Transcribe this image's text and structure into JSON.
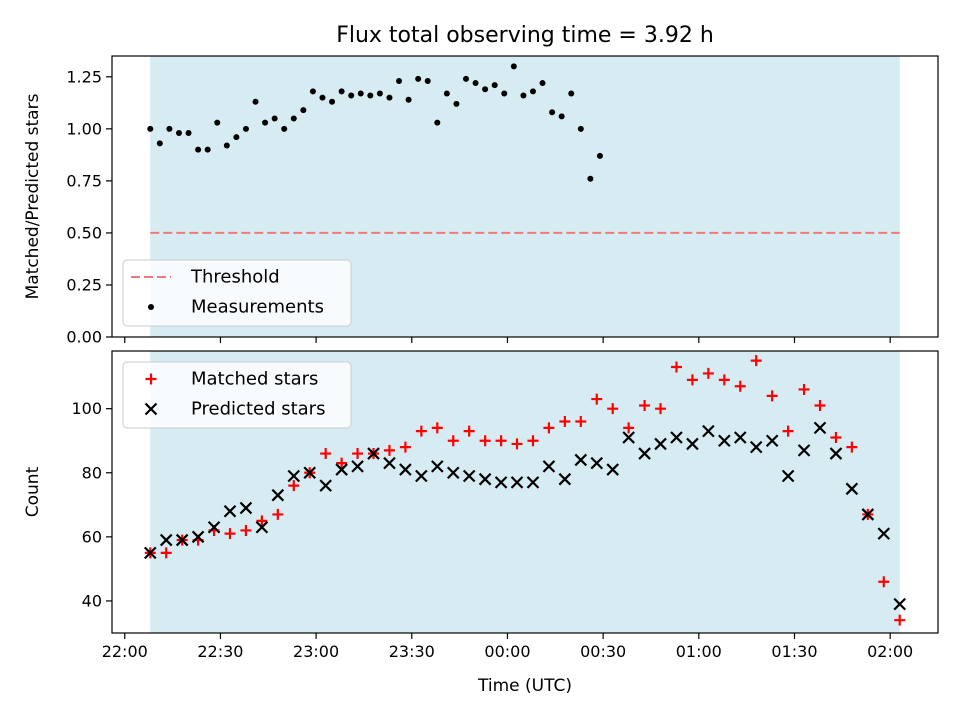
{
  "chart_data": [
    {
      "type": "scatter",
      "title": "Flux total observing time = 3.92 h",
      "xlabel": "",
      "ylabel": "Matched/Predicted stars",
      "xlim": [
        "21:56",
        "02:15"
      ],
      "ylim": [
        0,
        1.35
      ],
      "yticks": [
        0.0,
        0.25,
        0.5,
        0.75,
        1.0,
        1.25
      ],
      "ytick_labels": [
        "0.00",
        "0.25",
        "0.50",
        "0.75",
        "1.00",
        "1.25"
      ],
      "observing_window": [
        "22:08",
        "02:03"
      ],
      "threshold": {
        "name": "Threshold",
        "value": 0.5,
        "color": "#f07a7a",
        "style": "dashed"
      },
      "legend": {
        "placement": "lower-left",
        "entries": [
          "Threshold",
          "Measurements"
        ]
      },
      "series": [
        {
          "name": "Measurements",
          "marker": "dot",
          "color": "#000000",
          "points": [
            [
              "22:08",
              1.0
            ],
            [
              "22:11",
              0.93
            ],
            [
              "22:14",
              1.0
            ],
            [
              "22:17",
              0.98
            ],
            [
              "22:20",
              0.98
            ],
            [
              "22:23",
              0.9
            ],
            [
              "22:26",
              0.9
            ],
            [
              "22:29",
              1.03
            ],
            [
              "22:32",
              0.92
            ],
            [
              "22:35",
              0.96
            ],
            [
              "22:38",
              1.0
            ],
            [
              "22:41",
              1.13
            ],
            [
              "22:44",
              1.03
            ],
            [
              "22:47",
              1.05
            ],
            [
              "22:50",
              1.0
            ],
            [
              "22:53",
              1.05
            ],
            [
              "22:56",
              1.09
            ],
            [
              "22:59",
              1.18
            ],
            [
              "23:02",
              1.15
            ],
            [
              "23:05",
              1.13
            ],
            [
              "23:08",
              1.18
            ],
            [
              "23:11",
              1.16
            ],
            [
              "23:14",
              1.17
            ],
            [
              "23:17",
              1.16
            ],
            [
              "23:20",
              1.17
            ],
            [
              "23:23",
              1.15
            ],
            [
              "23:26",
              1.23
            ],
            [
              "23:29",
              1.14
            ],
            [
              "23:32",
              1.24
            ],
            [
              "23:35",
              1.23
            ],
            [
              "23:38",
              1.03
            ],
            [
              "23:41",
              1.17
            ],
            [
              "23:44",
              1.12
            ],
            [
              "23:47",
              1.24
            ],
            [
              "23:50",
              1.22
            ],
            [
              "23:53",
              1.19
            ],
            [
              "23:56",
              1.21
            ],
            [
              "23:59",
              1.17
            ],
            [
              "00:02",
              1.3
            ],
            [
              "00:05",
              1.16
            ],
            [
              "00:08",
              1.18
            ],
            [
              "00:11",
              1.22
            ],
            [
              "00:14",
              1.08
            ],
            [
              "00:17",
              1.06
            ],
            [
              "00:20",
              1.17
            ],
            [
              "00:23",
              1.0
            ],
            [
              "00:26",
              0.76
            ],
            [
              "00:29",
              0.87
            ]
          ]
        }
      ]
    },
    {
      "type": "scatter",
      "title": "",
      "xlabel": "Time (UTC)",
      "ylabel": "Count",
      "xlim": [
        "21:56",
        "02:15"
      ],
      "ylim": [
        30,
        118
      ],
      "yticks": [
        40,
        60,
        80,
        100
      ],
      "xticks": [
        "22:00",
        "22:30",
        "23:00",
        "23:30",
        "00:00",
        "00:30",
        "01:00",
        "01:30",
        "02:00"
      ],
      "observing_window": [
        "22:08",
        "02:03"
      ],
      "legend": {
        "placement": "upper-left",
        "entries": [
          "Matched stars",
          "Predicted stars"
        ]
      },
      "series": [
        {
          "name": "Matched stars",
          "marker": "plus",
          "color": "#ff0000",
          "points": [
            [
              "22:08",
              55
            ],
            [
              "22:13",
              55
            ],
            [
              "22:18",
              59
            ],
            [
              "22:23",
              59
            ],
            [
              "22:28",
              62
            ],
            [
              "22:33",
              61
            ],
            [
              "22:38",
              62
            ],
            [
              "22:43",
              65
            ],
            [
              "22:48",
              67
            ],
            [
              "22:53",
              76
            ],
            [
              "22:58",
              80
            ],
            [
              "23:03",
              86
            ],
            [
              "23:08",
              83
            ],
            [
              "23:13",
              86
            ],
            [
              "23:18",
              86
            ],
            [
              "23:23",
              87
            ],
            [
              "23:28",
              88
            ],
            [
              "23:33",
              93
            ],
            [
              "23:38",
              94
            ],
            [
              "23:43",
              90
            ],
            [
              "23:48",
              93
            ],
            [
              "23:53",
              90
            ],
            [
              "23:58",
              90
            ],
            [
              "00:03",
              89
            ],
            [
              "00:08",
              90
            ],
            [
              "00:13",
              94
            ],
            [
              "00:18",
              96
            ],
            [
              "00:23",
              96
            ],
            [
              "00:28",
              103
            ],
            [
              "00:33",
              100
            ],
            [
              "00:38",
              94
            ],
            [
              "00:43",
              101
            ],
            [
              "00:48",
              100
            ],
            [
              "00:53",
              113
            ],
            [
              "00:58",
              109
            ],
            [
              "01:03",
              111
            ],
            [
              "01:08",
              109
            ],
            [
              "01:13",
              107
            ],
            [
              "01:18",
              115
            ],
            [
              "01:23",
              104
            ],
            [
              "01:28",
              93
            ],
            [
              "01:33",
              106
            ],
            [
              "01:38",
              101
            ],
            [
              "01:43",
              91
            ],
            [
              "01:48",
              88
            ],
            [
              "01:53",
              67
            ],
            [
              "01:58",
              46
            ],
            [
              "02:03",
              34
            ]
          ]
        },
        {
          "name": "Predicted stars",
          "marker": "x",
          "color": "#000000",
          "points": [
            [
              "22:08",
              55
            ],
            [
              "22:13",
              59
            ],
            [
              "22:18",
              59
            ],
            [
              "22:23",
              60
            ],
            [
              "22:28",
              63
            ],
            [
              "22:33",
              68
            ],
            [
              "22:38",
              69
            ],
            [
              "22:43",
              63
            ],
            [
              "22:48",
              73
            ],
            [
              "22:53",
              79
            ],
            [
              "22:58",
              80
            ],
            [
              "23:03",
              76
            ],
            [
              "23:08",
              81
            ],
            [
              "23:13",
              82
            ],
            [
              "23:18",
              86
            ],
            [
              "23:23",
              83
            ],
            [
              "23:28",
              81
            ],
            [
              "23:33",
              79
            ],
            [
              "23:38",
              82
            ],
            [
              "23:43",
              80
            ],
            [
              "23:48",
              79
            ],
            [
              "23:53",
              78
            ],
            [
              "23:58",
              77
            ],
            [
              "00:03",
              77
            ],
            [
              "00:08",
              77
            ],
            [
              "00:13",
              82
            ],
            [
              "00:18",
              78
            ],
            [
              "00:23",
              84
            ],
            [
              "00:28",
              83
            ],
            [
              "00:33",
              81
            ],
            [
              "00:38",
              91
            ],
            [
              "00:43",
              86
            ],
            [
              "00:48",
              89
            ],
            [
              "00:53",
              91
            ],
            [
              "00:58",
              89
            ],
            [
              "01:03",
              93
            ],
            [
              "01:08",
              90
            ],
            [
              "01:13",
              91
            ],
            [
              "01:18",
              88
            ],
            [
              "01:23",
              90
            ],
            [
              "01:28",
              79
            ],
            [
              "01:33",
              87
            ],
            [
              "01:38",
              94
            ],
            [
              "01:43",
              86
            ],
            [
              "01:48",
              75
            ],
            [
              "01:53",
              67
            ],
            [
              "01:58",
              61
            ],
            [
              "02:03",
              39
            ]
          ]
        }
      ]
    }
  ]
}
